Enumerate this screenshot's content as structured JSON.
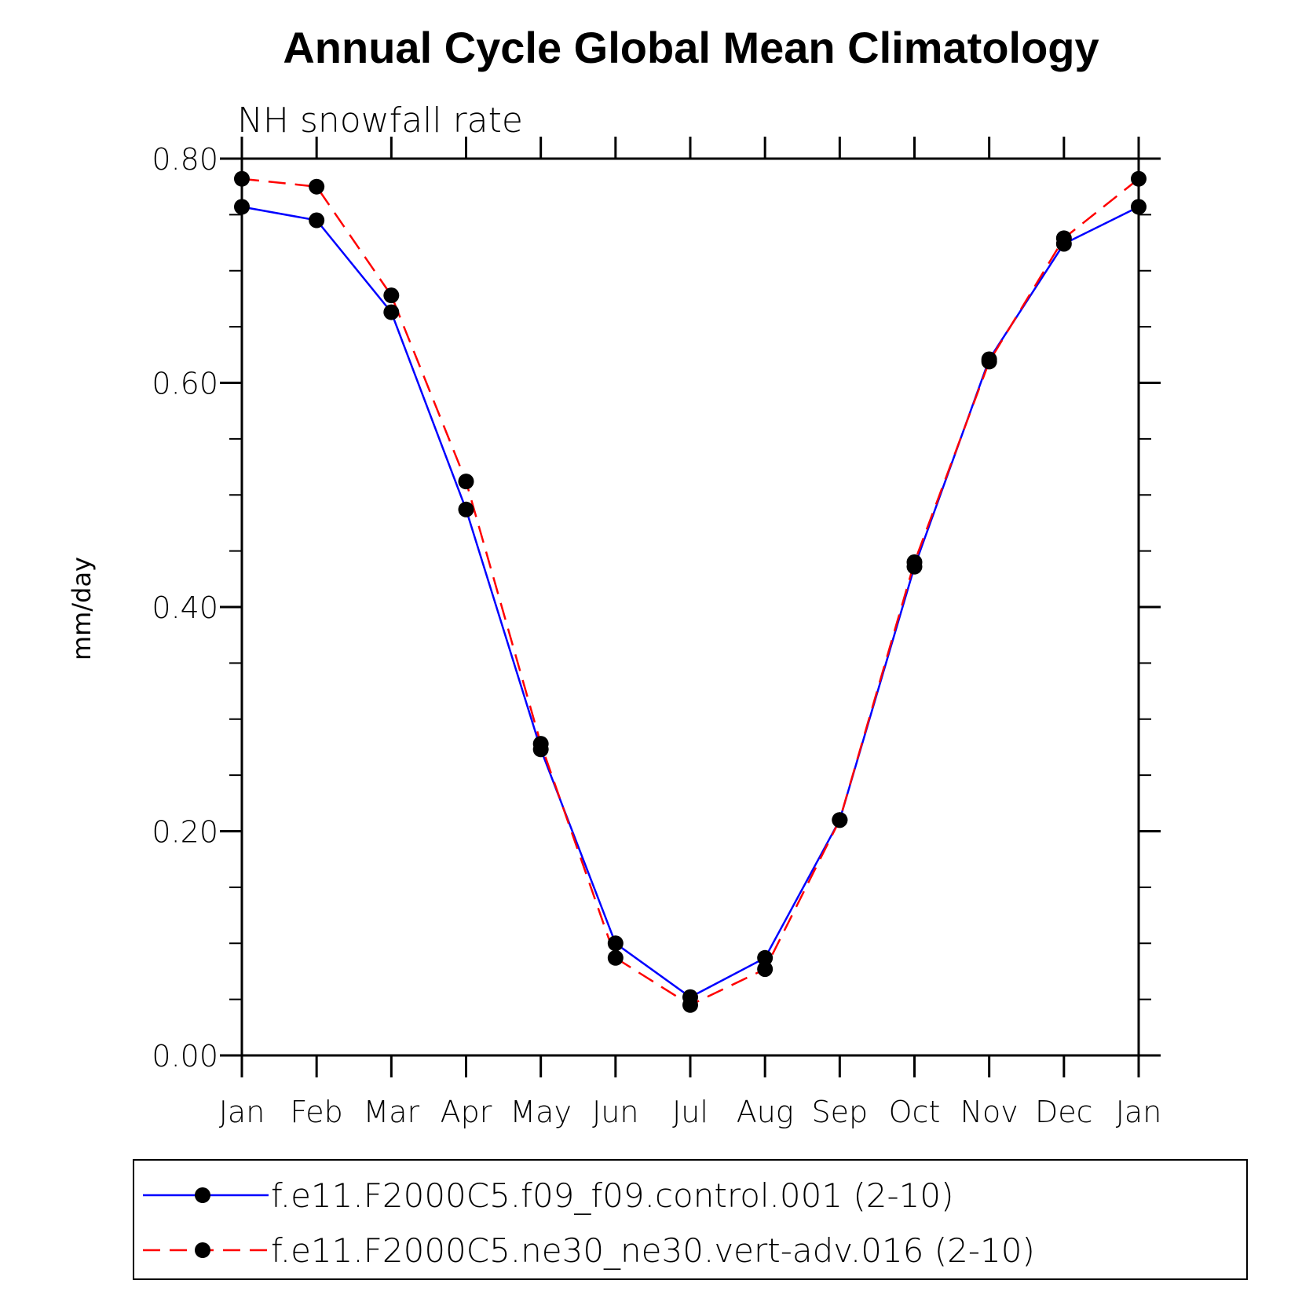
{
  "chart_data": {
    "type": "line",
    "title": "Annual Cycle Global Mean Climatology",
    "subtitle": "NH snowfall rate",
    "xlabel": "",
    "ylabel": "mm/day",
    "categories": [
      "Jan",
      "Feb",
      "Mar",
      "Apr",
      "May",
      "Jun",
      "Jul",
      "Aug",
      "Sep",
      "Oct",
      "Nov",
      "Dec",
      "Jan"
    ],
    "ylim": [
      0.0,
      0.8
    ],
    "yticks": [
      "0.00",
      "0.20",
      "0.40",
      "0.60",
      "0.80"
    ],
    "series": [
      {
        "name": "f.e11.F2000C5.f09_f09.control.001 (2-10)",
        "color": "#0000ff",
        "line_style": "solid",
        "marker": "filled-circle",
        "values": [
          0.757,
          0.745,
          0.663,
          0.487,
          0.273,
          0.1,
          0.052,
          0.087,
          0.21,
          0.436,
          0.621,
          0.724,
          0.757
        ]
      },
      {
        "name": "f.e11.F2000C5.ne30_ne30.vert-adv.016 (2-10)",
        "color": "#ff0000",
        "line_style": "dashed",
        "marker": "filled-circle",
        "values": [
          0.782,
          0.775,
          0.678,
          0.512,
          0.278,
          0.087,
          0.045,
          0.077,
          0.21,
          0.44,
          0.619,
          0.729,
          0.782
        ]
      }
    ],
    "legend_position": "bottom"
  }
}
